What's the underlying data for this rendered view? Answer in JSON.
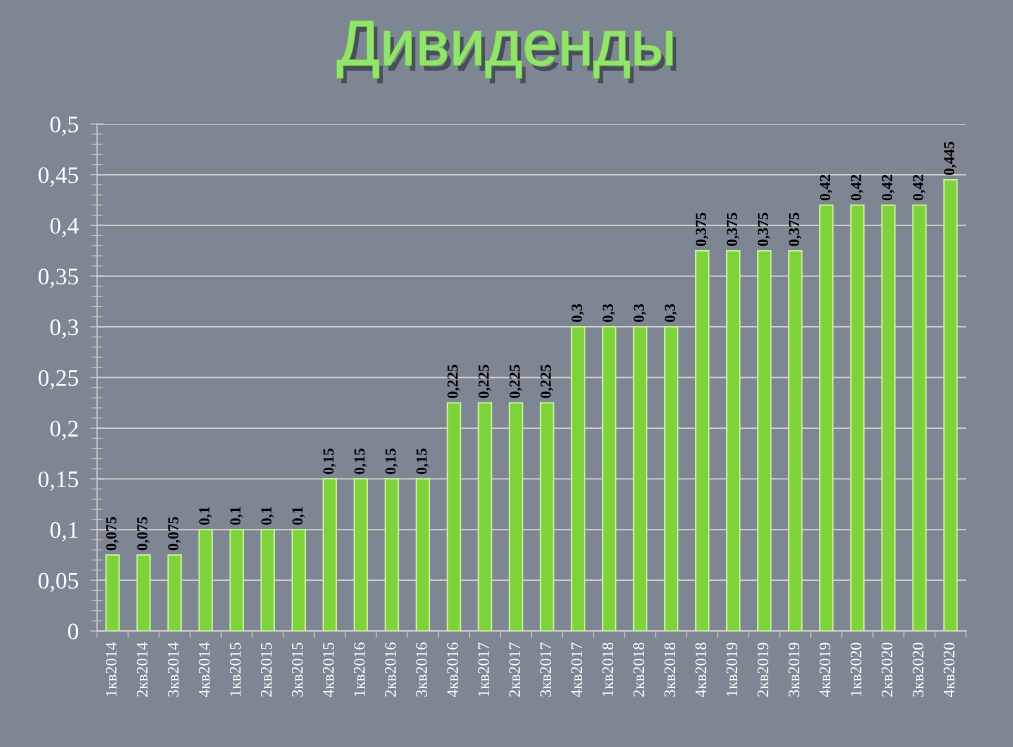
{
  "chart_data": {
    "type": "bar",
    "title": "Дивиденды",
    "categories": [
      "1кв2014",
      "2кв2014",
      "3кв2014",
      "4кв2014",
      "1кв2015",
      "2кв2015",
      "3кв2015",
      "4кв2015",
      "1кв2016",
      "2кв2016",
      "3кв2016",
      "4кв2016",
      "1кв2017",
      "2кв2017",
      "3кв2017",
      "4кв2017",
      "1кв2018",
      "2кв2018",
      "3кв2018",
      "4кв2018",
      "1кв2019",
      "2кв2019",
      "3кв2019",
      "4кв2019",
      "1кв2020",
      "2кв2020",
      "3кв2020",
      "4кв2020"
    ],
    "values": [
      0.075,
      0.075,
      0.075,
      0.1,
      0.1,
      0.1,
      0.1,
      0.15,
      0.15,
      0.15,
      0.15,
      0.225,
      0.225,
      0.225,
      0.225,
      0.3,
      0.3,
      0.3,
      0.3,
      0.375,
      0.375,
      0.375,
      0.375,
      0.42,
      0.42,
      0.42,
      0.42,
      0.445
    ],
    "value_labels": [
      "0,075",
      "0,075",
      "0,075",
      "0,1",
      "0,1",
      "0,1",
      "0,1",
      "0,15",
      "0,15",
      "0,15",
      "0,15",
      "0,225",
      "0,225",
      "0,225",
      "0,225",
      "0,3",
      "0,3",
      "0,3",
      "0,3",
      "0,375",
      "0,375",
      "0,375",
      "0,375",
      "0,42",
      "0,42",
      "0,42",
      "0,42",
      "0,445"
    ],
    "color": "#7ed23a",
    "ylim": [
      0,
      0.5
    ],
    "yticks": [
      {
        "value": 0,
        "label": "0"
      },
      {
        "value": 0.01,
        "label": null
      },
      {
        "value": 0.02,
        "label": null
      },
      {
        "value": 0.03,
        "label": null
      },
      {
        "value": 0.04,
        "label": null
      },
      {
        "value": 0.05,
        "label": "0,05"
      },
      {
        "value": 0.06,
        "label": null
      },
      {
        "value": 0.07,
        "label": null
      },
      {
        "value": 0.08,
        "label": null
      },
      {
        "value": 0.09,
        "label": null
      },
      {
        "value": 0.1,
        "label": "0,1"
      },
      {
        "value": 0.11,
        "label": null
      },
      {
        "value": 0.12,
        "label": null
      },
      {
        "value": 0.13,
        "label": null
      },
      {
        "value": 0.14,
        "label": null
      },
      {
        "value": 0.15,
        "label": "0,15"
      },
      {
        "value": 0.16,
        "label": null
      },
      {
        "value": 0.17,
        "label": null
      },
      {
        "value": 0.18,
        "label": null
      },
      {
        "value": 0.19,
        "label": null
      },
      {
        "value": 0.2,
        "label": "0,2"
      },
      {
        "value": 0.21,
        "label": null
      },
      {
        "value": 0.22,
        "label": null
      },
      {
        "value": 0.23,
        "label": null
      },
      {
        "value": 0.24,
        "label": null
      },
      {
        "value": 0.25,
        "label": "0,25"
      },
      {
        "value": 0.26,
        "label": null
      },
      {
        "value": 0.27,
        "label": null
      },
      {
        "value": 0.28,
        "label": null
      },
      {
        "value": 0.29,
        "label": null
      },
      {
        "value": 0.3,
        "label": "0,3"
      },
      {
        "value": 0.31,
        "label": null
      },
      {
        "value": 0.32,
        "label": null
      },
      {
        "value": 0.33,
        "label": null
      },
      {
        "value": 0.34,
        "label": null
      },
      {
        "value": 0.35,
        "label": "0,35"
      },
      {
        "value": 0.36,
        "label": null
      },
      {
        "value": 0.37,
        "label": null
      },
      {
        "value": 0.38,
        "label": null
      },
      {
        "value": 0.39,
        "label": null
      },
      {
        "value": 0.4,
        "label": "0,4"
      },
      {
        "value": 0.41,
        "label": null
      },
      {
        "value": 0.42,
        "label": null
      },
      {
        "value": 0.43,
        "label": null
      },
      {
        "value": 0.44,
        "label": null
      },
      {
        "value": 0.45,
        "label": "0,45"
      },
      {
        "value": 0.46,
        "label": null
      },
      {
        "value": 0.47,
        "label": null
      },
      {
        "value": 0.48,
        "label": null
      },
      {
        "value": 0.49,
        "label": null
      },
      {
        "value": 0.5,
        "label": "0,5"
      }
    ],
    "grid": "y",
    "legend": false
  }
}
